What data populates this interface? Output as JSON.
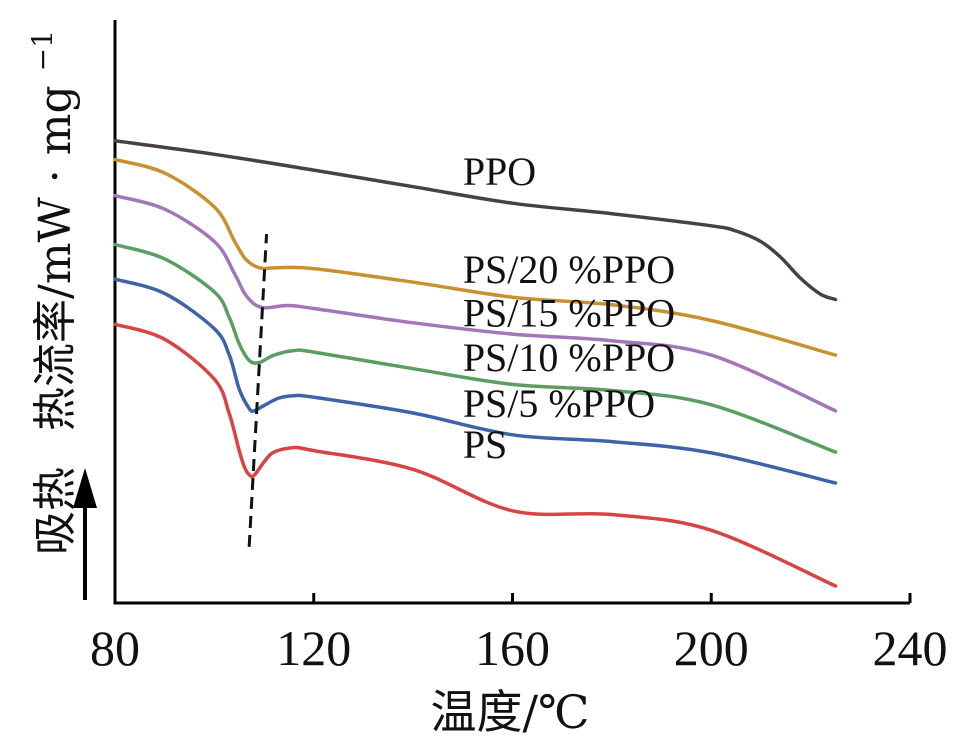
{
  "chart_data": {
    "type": "line",
    "title": "",
    "xlabel": "温度/℃",
    "ylabel": "热流率/mW · mg",
    "ylabel_superscript": "−1",
    "endotherm_label": "吸热",
    "endotherm_arrow": "up",
    "xlim": [
      80,
      240
    ],
    "xticks": [
      80,
      120,
      160,
      200,
      240
    ],
    "grid": false,
    "legend": "inline labels",
    "series": [
      {
        "name": "PPO",
        "color": "#4a4040",
        "x": [
          80,
          100,
          120,
          140,
          160,
          180,
          200,
          205,
          210,
          214,
          218,
          222,
          225
        ],
        "y": [
          8.0,
          7.64,
          7.22,
          6.78,
          6.34,
          6.06,
          5.74,
          5.6,
          5.32,
          4.9,
          4.34,
          3.92,
          3.78
        ]
      },
      {
        "name": "PS/20 %PPO",
        "color": "#c8902e",
        "x": [
          80,
          90,
          100,
          104,
          106,
          108,
          110,
          112,
          120,
          140,
          160,
          180,
          200,
          225
        ],
        "y": [
          7.5,
          7.14,
          6.24,
          5.34,
          4.9,
          4.68,
          4.6,
          4.62,
          4.6,
          4.24,
          3.84,
          3.64,
          3.22,
          2.3
        ]
      },
      {
        "name": "PS/15 %PPO",
        "color": "#a276b8",
        "x": [
          80,
          90,
          100,
          104,
          106,
          108,
          110,
          112,
          115,
          120,
          140,
          160,
          180,
          200,
          225
        ],
        "y": [
          6.54,
          6.18,
          5.32,
          4.48,
          3.96,
          3.66,
          3.56,
          3.58,
          3.62,
          3.54,
          3.16,
          2.86,
          2.68,
          2.3,
          0.82
        ]
      },
      {
        "name": "PS/10 %PPO",
        "color": "#5a9e63",
        "x": [
          80,
          90,
          100,
          103,
          105,
          107,
          109,
          112,
          116,
          120,
          140,
          160,
          180,
          200,
          225
        ],
        "y": [
          5.24,
          4.86,
          3.98,
          3.3,
          2.6,
          2.16,
          2.1,
          2.3,
          2.42,
          2.38,
          1.94,
          1.52,
          1.36,
          0.98,
          -0.28
        ]
      },
      {
        "name": "PS/5 %PPO",
        "color": "#3f63a8",
        "x": [
          80,
          90,
          100,
          103,
          105,
          107,
          108,
          110,
          113,
          116,
          120,
          140,
          160,
          180,
          200,
          225
        ],
        "y": [
          4.32,
          3.94,
          3.0,
          2.3,
          1.4,
          0.88,
          0.82,
          0.96,
          1.16,
          1.22,
          1.18,
          0.76,
          0.18,
          0.0,
          -0.3,
          -1.1
        ]
      },
      {
        "name": "PS",
        "color": "#d84444",
        "x": [
          80,
          90,
          100,
          103,
          105,
          106,
          107,
          108,
          110,
          112,
          116,
          120,
          140,
          160,
          180,
          200,
          225
        ],
        "y": [
          3.12,
          2.72,
          1.66,
          0.74,
          -0.24,
          -0.66,
          -0.88,
          -0.9,
          -0.54,
          -0.28,
          -0.16,
          -0.24,
          -0.74,
          -1.84,
          -1.94,
          -2.36,
          -3.84
        ]
      }
    ],
    "annotation_line": {
      "style": "dashed",
      "x": [
        107.0,
        110.5
      ],
      "y": [
        -2.8,
        5.52
      ]
    }
  }
}
